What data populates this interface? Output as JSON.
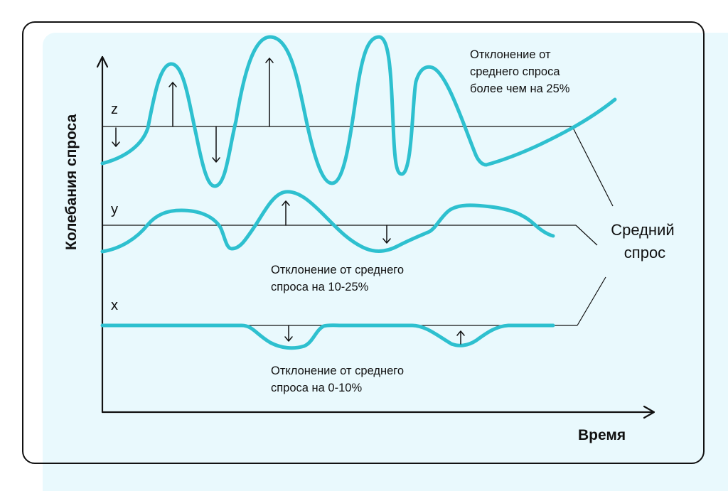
{
  "axes": {
    "ylabel": "Колебания спроса",
    "xlabel": "Время"
  },
  "levels": {
    "z": "z",
    "y": "y",
    "x": "x"
  },
  "annotations": {
    "z": [
      "Отклонение от",
      "среднего спроса",
      "более чем на 25%"
    ],
    "y": [
      "Отклонение от среднего",
      "спроса на 10-25%"
    ],
    "x": [
      "Отклонение от среднего",
      "спроса на 0-10%"
    ]
  },
  "average_label": [
    "Средний",
    "спрос"
  ],
  "colors": {
    "wave": "#2ec0cf",
    "background": "#e9f9fd",
    "line": "#111111"
  }
}
